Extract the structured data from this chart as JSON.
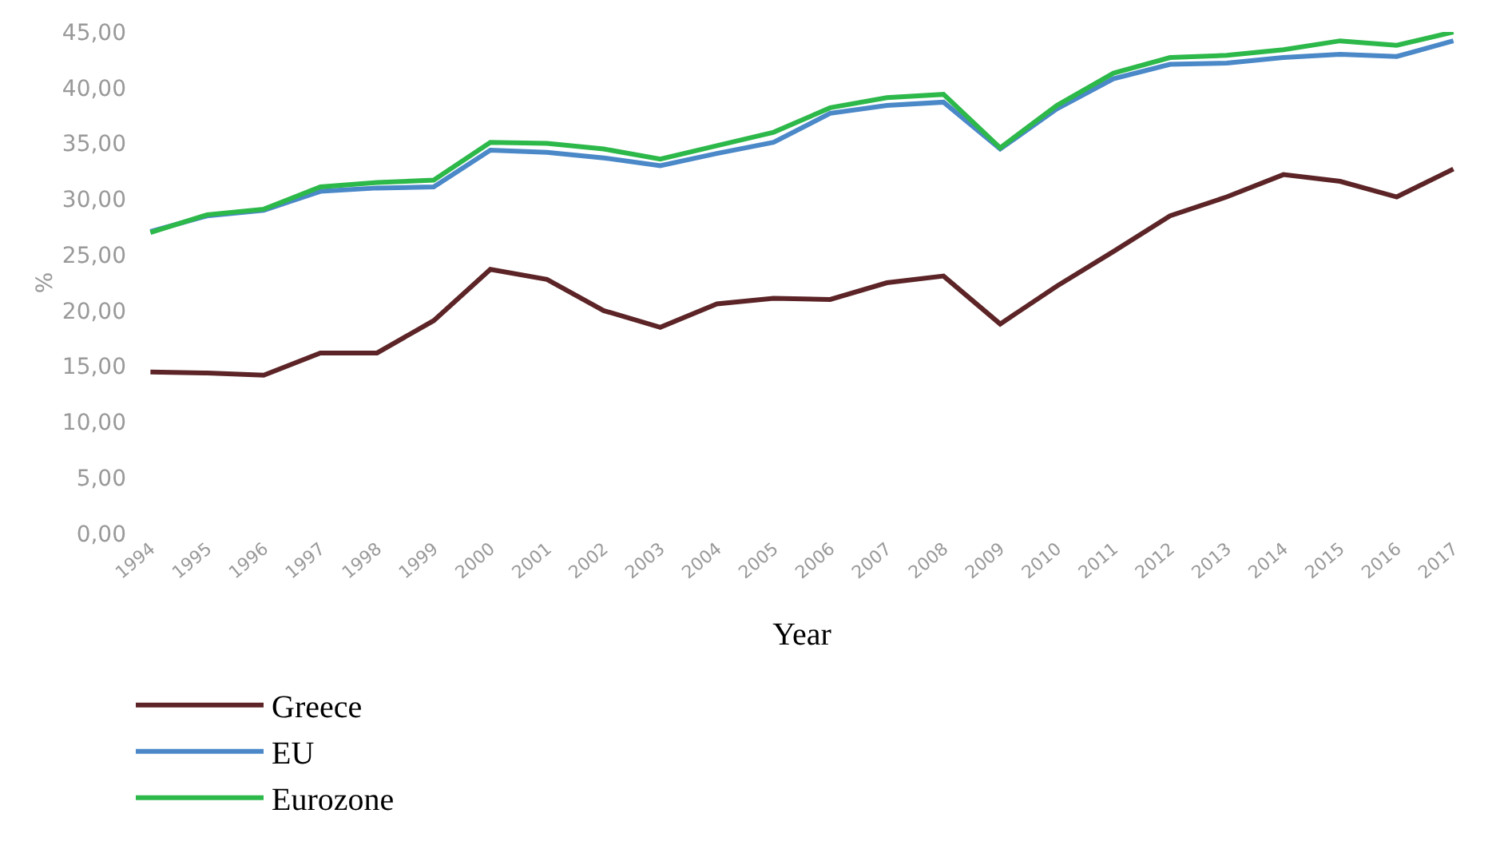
{
  "chart_data": {
    "type": "line",
    "xlabel": "Year",
    "ylabel": "%",
    "categories": [
      "1994",
      "1995",
      "1996",
      "1997",
      "1998",
      "1999",
      "2000",
      "2001",
      "2002",
      "2003",
      "2004",
      "2005",
      "2006",
      "2007",
      "2008",
      "2009",
      "2010",
      "2011",
      "2012",
      "2013",
      "2014",
      "2015",
      "2016",
      "2017"
    ],
    "series": [
      {
        "name": "Greece",
        "color": "#5c2426",
        "values": [
          14.5,
          14.4,
          14.2,
          16.2,
          16.2,
          19.1,
          23.7,
          22.8,
          20.0,
          18.5,
          20.6,
          21.1,
          21.0,
          22.5,
          23.1,
          18.8,
          22.2,
          25.3,
          28.5,
          30.2,
          32.2,
          31.6,
          30.2,
          32.7
        ]
      },
      {
        "name": "EU",
        "color": "#4a88c8",
        "values": [
          27.1,
          28.5,
          29.0,
          30.7,
          31.0,
          31.1,
          34.4,
          34.2,
          33.7,
          33.0,
          34.1,
          35.1,
          37.7,
          38.4,
          38.7,
          34.5,
          38.1,
          40.8,
          42.1,
          42.2,
          42.7,
          43.0,
          42.8,
          44.2
        ]
      },
      {
        "name": "Eurozone",
        "color": "#2db84a",
        "values": [
          27.0,
          28.6,
          29.1,
          31.1,
          31.5,
          31.7,
          35.1,
          35.0,
          34.5,
          33.6,
          34.8,
          36.0,
          38.2,
          39.1,
          39.4,
          34.6,
          38.4,
          41.3,
          42.7,
          42.9,
          43.4,
          44.2,
          43.8,
          45.0
        ]
      }
    ],
    "ylim": [
      0,
      45
    ],
    "yticks": [
      {
        "value": 0,
        "label": "0,00"
      },
      {
        "value": 5,
        "label": "5,00"
      },
      {
        "value": 10,
        "label": "10,00"
      },
      {
        "value": 15,
        "label": "15,00"
      },
      {
        "value": 20,
        "label": "20,00"
      },
      {
        "value": 25,
        "label": "25,00"
      },
      {
        "value": 30,
        "label": "30,00"
      },
      {
        "value": 35,
        "label": "35,00"
      },
      {
        "value": 40,
        "label": "40,00"
      },
      {
        "value": 45,
        "label": "45,00"
      }
    ],
    "legend": "bottom left",
    "marker": "none",
    "line_style": "solid"
  }
}
